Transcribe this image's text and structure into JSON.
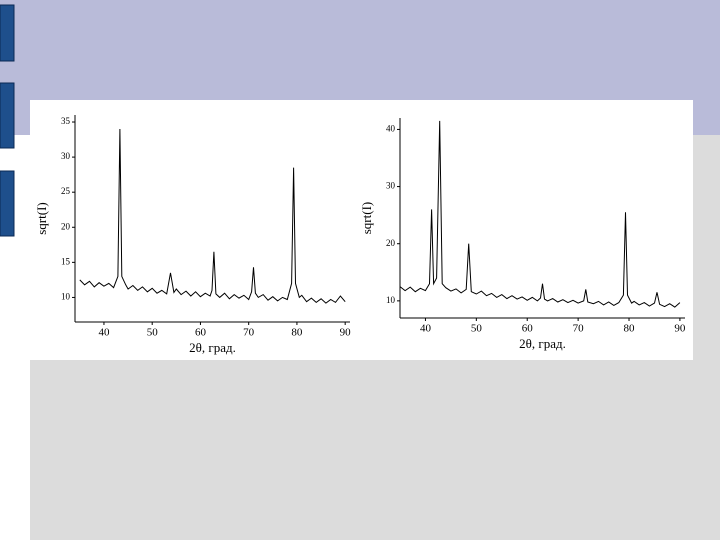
{
  "chart_data": [
    {
      "type": "line",
      "xlabel": "2θ, град.",
      "ylabel": "sqrt(I)",
      "xlim": [
        34,
        91
      ],
      "xticks": [
        40,
        50,
        60,
        70,
        80,
        90
      ],
      "ylim": [
        6.5,
        36
      ],
      "yticks": [
        10,
        15,
        20,
        25,
        30,
        35
      ],
      "series": [
        {
          "color": "#000000",
          "x": [
            35,
            36,
            37,
            38,
            39,
            40,
            41,
            42,
            42.9,
            43.3,
            43.7,
            44.5,
            45,
            46,
            47,
            48,
            49,
            50,
            51,
            52,
            53,
            53.8,
            54.5,
            55,
            56,
            57,
            58,
            59,
            60,
            61,
            62,
            62.4,
            62.8,
            63.2,
            64,
            65,
            66,
            67,
            68,
            69,
            70,
            70.6,
            71,
            71.4,
            72,
            73,
            74,
            75,
            76,
            77,
            78,
            78.9,
            79.3,
            79.7,
            80.5,
            81,
            82,
            83,
            84,
            85,
            86,
            87,
            88,
            89,
            90
          ],
          "values": [
            12.5,
            11.8,
            12.3,
            11.5,
            12.1,
            11.6,
            12.0,
            11.4,
            13,
            34,
            13,
            11.8,
            11.2,
            11.7,
            11.0,
            11.5,
            10.8,
            11.3,
            10.6,
            11.0,
            10.5,
            13.5,
            10.7,
            11.2,
            10.4,
            10.9,
            10.2,
            10.8,
            10.1,
            10.6,
            10.2,
            11,
            16.5,
            10.5,
            10.0,
            10.6,
            9.8,
            10.4,
            9.9,
            10.3,
            9.7,
            10.8,
            14.3,
            10.6,
            10.0,
            10.4,
            9.6,
            10.1,
            9.5,
            10.0,
            9.7,
            12,
            28.5,
            12,
            10.0,
            10.3,
            9.4,
            9.9,
            9.3,
            9.8,
            9.2,
            9.7,
            9.3,
            10.2,
            9.4
          ]
        }
      ]
    },
    {
      "type": "line",
      "xlabel": "2θ, град.",
      "ylabel": "sqrt(I)",
      "xlim": [
        35,
        91
      ],
      "xticks": [
        40,
        50,
        60,
        70,
        80,
        90
      ],
      "ylim": [
        7,
        42
      ],
      "yticks": [
        10,
        20,
        30,
        40
      ],
      "series": [
        {
          "color": "#000000",
          "x": [
            35,
            36,
            37,
            38,
            39,
            40,
            40.8,
            41.2,
            41.6,
            42.2,
            42.8,
            43.3,
            44,
            45,
            46,
            47,
            48,
            48.5,
            49,
            50,
            51,
            52,
            53,
            54,
            55,
            56,
            57,
            58,
            59,
            60,
            61,
            62,
            62.6,
            63,
            63.4,
            64,
            65,
            66,
            67,
            68,
            69,
            70,
            71.1,
            71.5,
            71.9,
            73,
            74,
            75,
            76,
            77,
            78,
            78.9,
            79.3,
            79.7,
            80.5,
            81,
            82,
            83,
            84,
            85,
            85.5,
            86,
            87,
            88,
            89,
            90
          ],
          "values": [
            12.5,
            11.8,
            12.4,
            11.6,
            12.2,
            11.8,
            13,
            26,
            13,
            14,
            41.5,
            13,
            12.3,
            11.7,
            12.1,
            11.4,
            12,
            20,
            11.6,
            11.2,
            11.7,
            10.9,
            11.3,
            10.6,
            11.1,
            10.4,
            10.9,
            10.3,
            10.7,
            10.1,
            10.6,
            10.0,
            10.5,
            13,
            10.3,
            10.0,
            10.4,
            9.8,
            10.2,
            9.7,
            10.1,
            9.6,
            10.0,
            12,
            9.8,
            9.5,
            9.9,
            9.3,
            9.8,
            9.2,
            9.7,
            11,
            25.5,
            11,
            9.6,
            9.9,
            9.3,
            9.7,
            9.1,
            9.6,
            11.5,
            9.4,
            9.0,
            9.5,
            8.9,
            9.7
          ]
        }
      ]
    }
  ]
}
